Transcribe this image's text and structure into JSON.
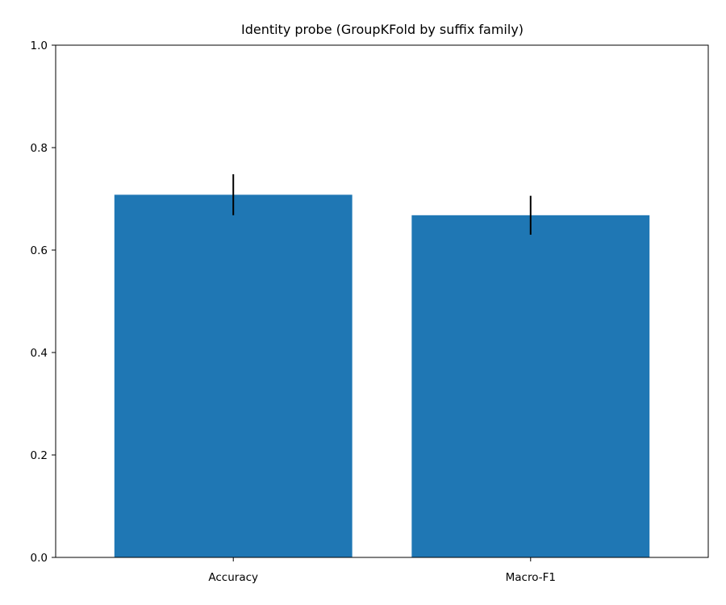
{
  "chart_data": {
    "type": "bar",
    "title": "Identity probe (GroupKFold by suffix family)",
    "xlabel": "",
    "ylabel": "",
    "categories": [
      "Accuracy",
      "Macro-F1"
    ],
    "values": [
      0.708,
      0.668
    ],
    "errors": [
      0.04,
      0.038
    ],
    "ylim": [
      0,
      1.0
    ],
    "yticks": [
      0.0,
      0.2,
      0.4,
      0.6,
      0.8,
      1.0
    ],
    "ytick_labels": [
      "0.0",
      "0.2",
      "0.4",
      "0.6",
      "0.8",
      "1.0"
    ],
    "bar_color": "#1f77b4",
    "error_color": "#000000",
    "grid": false,
    "legend": "none"
  }
}
